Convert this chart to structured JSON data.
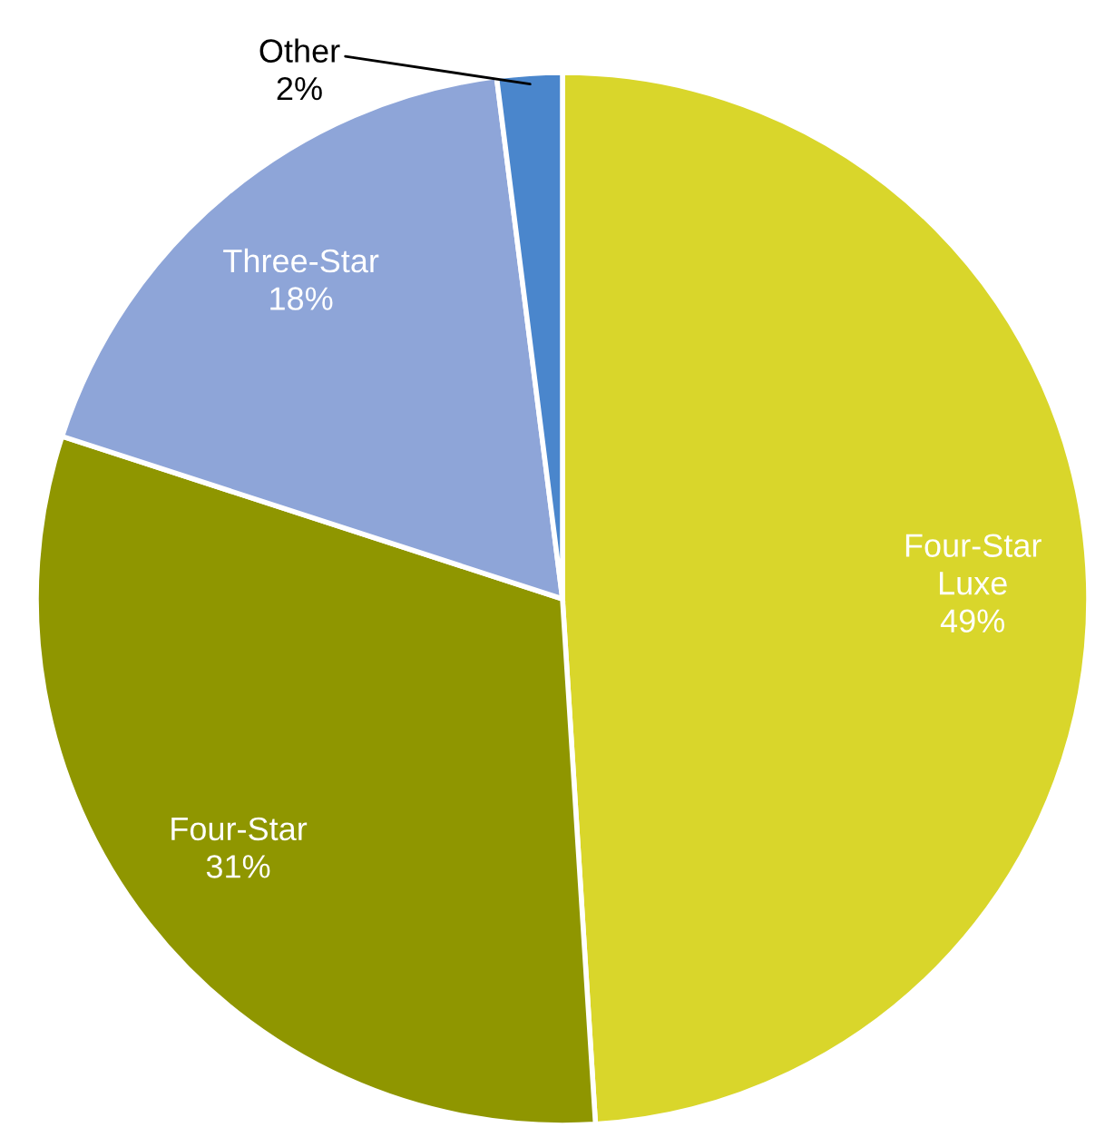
{
  "chart_data": {
    "type": "pie",
    "categories": [
      "Four-Star\nLuxe",
      "Four-Star",
      "Three-Star",
      "Other"
    ],
    "values": [
      49,
      31,
      18,
      2
    ],
    "value_labels": [
      "49%",
      "31%",
      "18%",
      "2%"
    ],
    "colors": [
      "#d9d62b",
      "#8f9600",
      "#8ea5d8",
      "#4a86cc"
    ]
  }
}
